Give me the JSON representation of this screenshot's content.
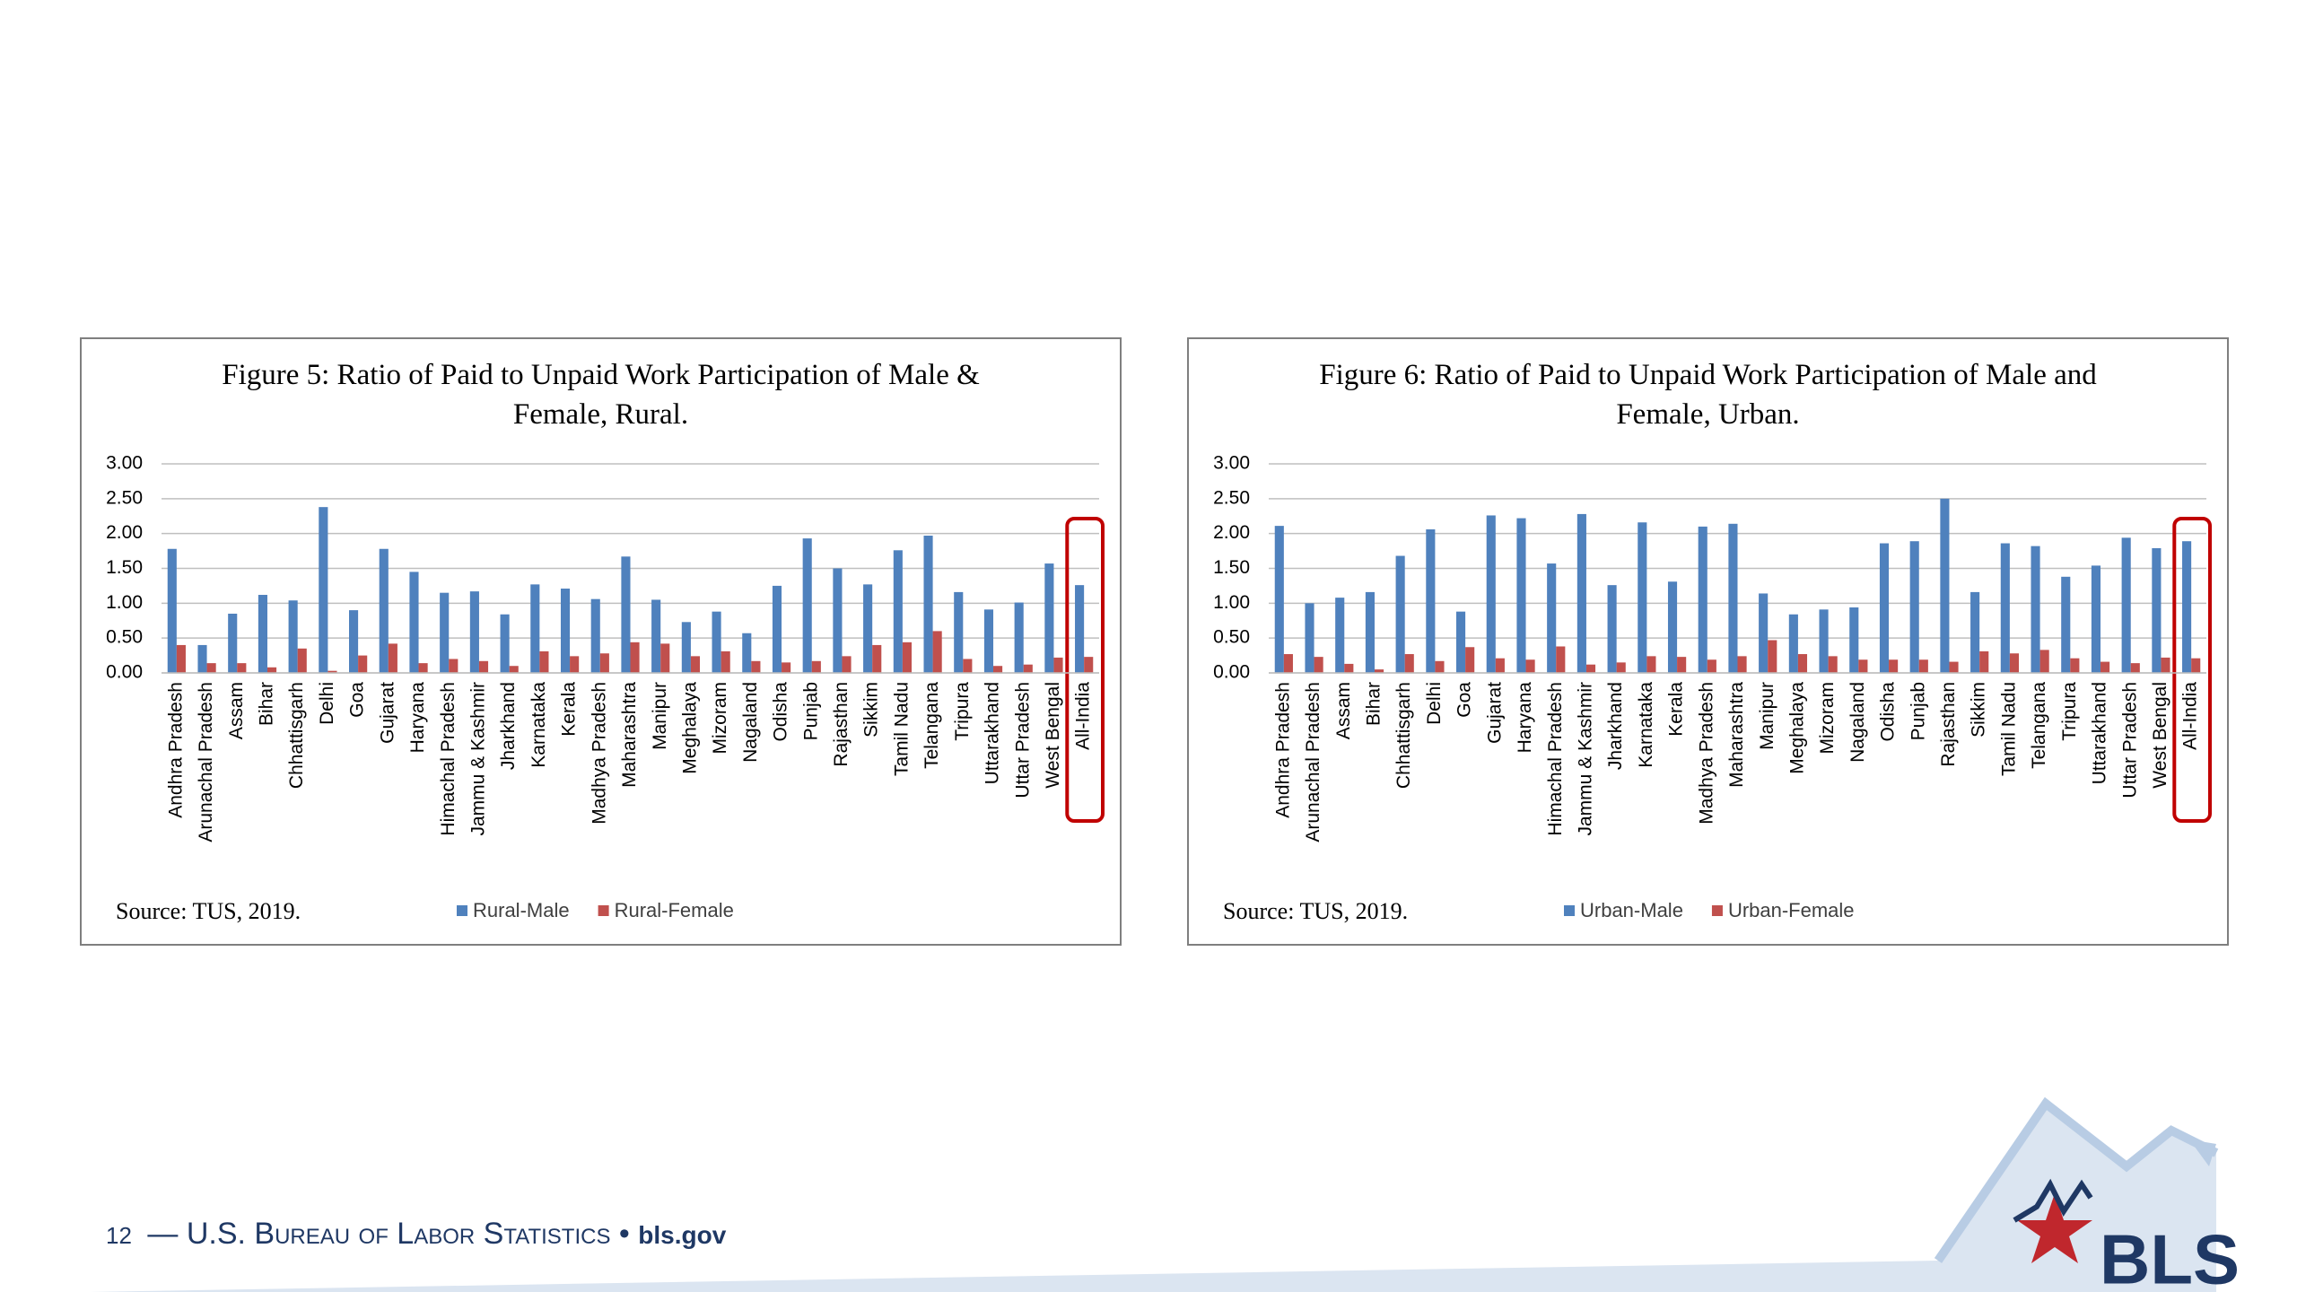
{
  "chart_data": [
    {
      "type": "bar",
      "title": "Figure 5: Ratio of Paid to Unpaid Work Participation of Male & Female, Rural.",
      "source": "Source: TUS, 2019.",
      "categories": [
        "Andhra Pradesh",
        "Arunachal Pradesh",
        "Assam",
        "Bihar",
        "Chhattisgarh",
        "Delhi",
        "Goa",
        "Gujarat",
        "Haryana",
        "Himachal Pradesh",
        "Jammu & Kashmir",
        "Jharkhand",
        "Karnataka",
        "Kerala",
        "Madhya Pradesh",
        "Maharashtra",
        "Manipur",
        "Meghalaya",
        "Mizoram",
        "Nagaland",
        "Odisha",
        "Punjab",
        "Rajasthan",
        "Sikkim",
        "Tamil Nadu",
        "Telangana",
        "Tripura",
        "Uttarakhand",
        "Uttar Pradesh",
        "West Bengal",
        "All-India"
      ],
      "series": [
        {
          "name": "Rural-Male",
          "color": "#4f81bd",
          "values": [
            1.78,
            0.4,
            0.85,
            1.12,
            1.04,
            2.38,
            0.9,
            1.78,
            1.45,
            1.15,
            1.17,
            0.84,
            1.27,
            1.21,
            1.06,
            1.67,
            1.05,
            0.73,
            0.88,
            0.57,
            1.25,
            1.93,
            1.5,
            1.27,
            1.76,
            1.97,
            1.16,
            0.91,
            1.01,
            1.57,
            1.26
          ]
        },
        {
          "name": "Rural-Female",
          "color": "#c0504d",
          "values": [
            0.4,
            0.14,
            0.14,
            0.08,
            0.35,
            0.03,
            0.25,
            0.42,
            0.14,
            0.2,
            0.17,
            0.1,
            0.31,
            0.24,
            0.28,
            0.44,
            0.42,
            0.24,
            0.31,
            0.17,
            0.15,
            0.17,
            0.24,
            0.4,
            0.44,
            0.6,
            0.2,
            0.1,
            0.12,
            0.22,
            0.23
          ]
        }
      ],
      "ylim": [
        0,
        3
      ],
      "yticks": [
        {
          "value": 0,
          "label": "0.00"
        },
        {
          "value": 0.5,
          "label": "0.50"
        },
        {
          "value": 1,
          "label": "1.00"
        },
        {
          "value": 1.5,
          "label": "1.50"
        },
        {
          "value": 2,
          "label": "2.00"
        },
        {
          "value": 2.5,
          "label": "2.50"
        },
        {
          "value": 3,
          "label": "3.00"
        }
      ],
      "grid": true
    },
    {
      "type": "bar",
      "title": "Figure 6: Ratio of Paid to Unpaid Work Participation of Male and Female, Urban.",
      "source": "Source: TUS, 2019.",
      "categories": [
        "Andhra Pradesh",
        "Arunachal Pradesh",
        "Assam",
        "Bihar",
        "Chhattisgarh",
        "Delhi",
        "Goa",
        "Gujarat",
        "Haryana",
        "Himachal Pradesh",
        "Jammu & Kashmir",
        "Jharkhand",
        "Karnataka",
        "Kerala",
        "Madhya Pradesh",
        "Maharashtra",
        "Manipur",
        "Meghalaya",
        "Mizoram",
        "Nagaland",
        "Odisha",
        "Punjab",
        "Rajasthan",
        "Sikkim",
        "Tamil Nadu",
        "Telangana",
        "Tripura",
        "Uttarakhand",
        "Uttar Pradesh",
        "West Bengal",
        "All-India"
      ],
      "series": [
        {
          "name": "Urban-Male",
          "color": "#4f81bd",
          "values": [
            2.11,
            1.0,
            1.08,
            1.16,
            1.68,
            2.06,
            0.88,
            2.26,
            2.22,
            1.57,
            2.28,
            1.26,
            2.16,
            1.31,
            2.1,
            2.14,
            1.14,
            0.84,
            0.91,
            0.94,
            1.86,
            1.89,
            2.5,
            1.16,
            1.86,
            1.82,
            1.38,
            1.54,
            1.94,
            1.79,
            1.89
          ]
        },
        {
          "name": "Urban-Female",
          "color": "#c0504d",
          "values": [
            0.27,
            0.23,
            0.13,
            0.05,
            0.27,
            0.17,
            0.37,
            0.21,
            0.19,
            0.38,
            0.12,
            0.15,
            0.24,
            0.23,
            0.19,
            0.24,
            0.47,
            0.27,
            0.24,
            0.19,
            0.19,
            0.19,
            0.16,
            0.31,
            0.28,
            0.33,
            0.21,
            0.16,
            0.14,
            0.22,
            0.21
          ]
        }
      ],
      "ylim": [
        0,
        3
      ],
      "yticks": [
        {
          "value": 0,
          "label": "0.00"
        },
        {
          "value": 0.5,
          "label": "0.50"
        },
        {
          "value": 1,
          "label": "1.00"
        },
        {
          "value": 1.5,
          "label": "1.50"
        },
        {
          "value": 2,
          "label": "2.00"
        },
        {
          "value": 2.5,
          "label": "2.50"
        },
        {
          "value": 3,
          "label": "3.00"
        }
      ],
      "grid": true
    }
  ],
  "footer": {
    "page": "12",
    "dash": "—",
    "org": "U.S. Bureau of Labor Statistics",
    "bullet": "•",
    "site": "bls.gov"
  },
  "logo": "BLS"
}
